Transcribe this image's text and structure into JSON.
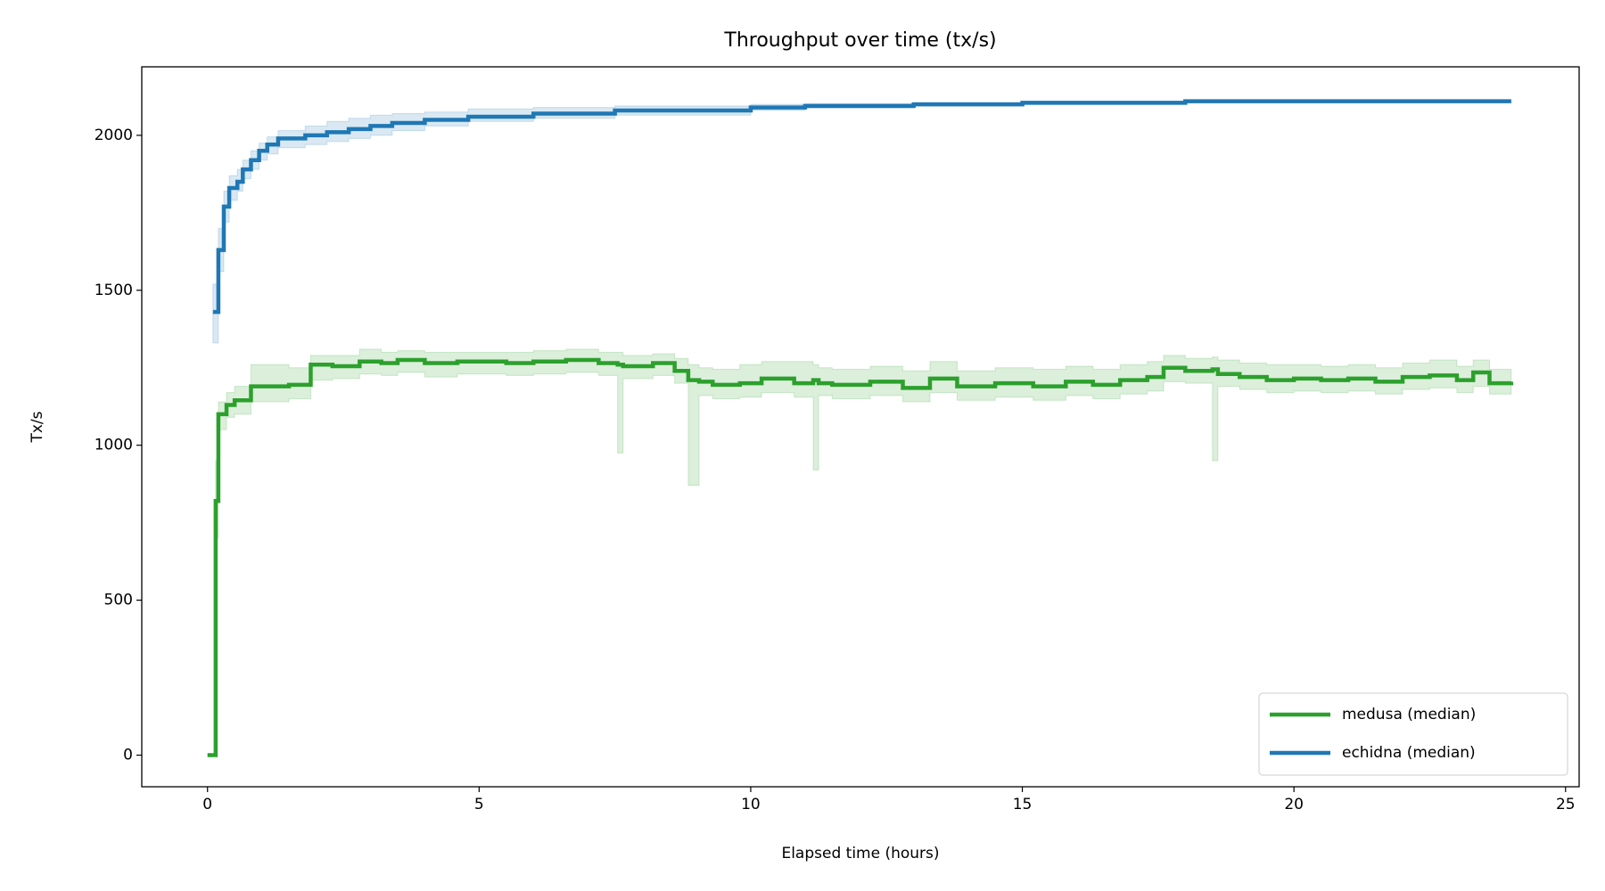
{
  "chart_data": {
    "type": "step",
    "title": "Throughput over time (tx/s)",
    "xlabel": "Elapsed time (hours)",
    "ylabel": "Tx/s",
    "xlim": [
      -1.21,
      25.25
    ],
    "ylim": [
      -102,
      2221
    ],
    "xticks": [
      0,
      5,
      10,
      15,
      20,
      25
    ],
    "yticks": [
      0,
      500,
      1000,
      1500,
      2000
    ],
    "legend": "lower right",
    "grid": false,
    "series": [
      {
        "name": "medusa (median)",
        "color": "#2ca02c",
        "x": [
          0,
          0.1,
          0.15,
          0.2,
          0.35,
          0.5,
          0.8,
          1.5,
          1.9,
          2.3,
          2.8,
          3.2,
          3.5,
          4.0,
          4.6,
          5.5,
          6.0,
          6.6,
          7.2,
          7.55,
          7.65,
          8.2,
          8.6,
          8.85,
          9.05,
          9.3,
          9.8,
          10.2,
          10.8,
          11.15,
          11.25,
          11.5,
          12.2,
          12.8,
          13.3,
          13.8,
          14.5,
          15.2,
          15.8,
          16.3,
          16.8,
          17.3,
          17.6,
          18.0,
          18.5,
          18.6,
          19.0,
          19.5,
          20.0,
          20.5,
          21.0,
          21.5,
          22.0,
          22.5,
          23.0,
          23.3,
          23.6,
          24.0
        ],
        "values": [
          0,
          0,
          820,
          1100,
          1130,
          1145,
          1190,
          1195,
          1260,
          1255,
          1270,
          1265,
          1275,
          1265,
          1270,
          1265,
          1270,
          1275,
          1265,
          1260,
          1255,
          1265,
          1240,
          1210,
          1205,
          1195,
          1200,
          1215,
          1200,
          1210,
          1200,
          1195,
          1205,
          1185,
          1215,
          1190,
          1200,
          1190,
          1205,
          1195,
          1210,
          1220,
          1250,
          1240,
          1245,
          1230,
          1220,
          1210,
          1215,
          1210,
          1215,
          1205,
          1220,
          1225,
          1210,
          1235,
          1200,
          1205
        ],
        "lower": [
          0,
          0,
          700,
          1050,
          1090,
          1100,
          1140,
          1150,
          1210,
          1215,
          1230,
          1225,
          1235,
          1220,
          1230,
          1225,
          1230,
          1235,
          1225,
          975,
          1215,
          1225,
          1200,
          870,
          1160,
          1150,
          1155,
          1170,
          1155,
          920,
          1160,
          1150,
          1160,
          1140,
          1170,
          1145,
          1155,
          1145,
          1160,
          1150,
          1165,
          1175,
          1205,
          1200,
          950,
          1190,
          1180,
          1170,
          1175,
          1170,
          1175,
          1165,
          1180,
          1185,
          1170,
          1190,
          1165,
          1170
        ],
        "upper": [
          0,
          0,
          950,
          1140,
          1170,
          1190,
          1260,
          1250,
          1290,
          1290,
          1310,
          1300,
          1305,
          1300,
          1300,
          1300,
          1305,
          1310,
          1300,
          1300,
          1290,
          1295,
          1280,
          1260,
          1250,
          1245,
          1260,
          1270,
          1270,
          1260,
          1250,
          1245,
          1255,
          1240,
          1270,
          1240,
          1250,
          1245,
          1255,
          1245,
          1260,
          1270,
          1290,
          1280,
          1285,
          1275,
          1265,
          1260,
          1260,
          1255,
          1260,
          1250,
          1265,
          1275,
          1255,
          1275,
          1245,
          1240
        ]
      },
      {
        "name": "echidna (median)",
        "color": "#1f77b4",
        "x": [
          0.1,
          0.2,
          0.3,
          0.4,
          0.55,
          0.65,
          0.8,
          0.95,
          1.1,
          1.3,
          1.8,
          2.2,
          2.6,
          3.0,
          3.4,
          4.0,
          4.8,
          6.0,
          7.5,
          10,
          11,
          13,
          15,
          18,
          24
        ],
        "values": [
          1430,
          1630,
          1770,
          1830,
          1850,
          1890,
          1920,
          1950,
          1970,
          1990,
          2000,
          2010,
          2020,
          2030,
          2040,
          2050,
          2060,
          2070,
          2080,
          2090,
          2095,
          2100,
          2105,
          2110,
          2110
        ],
        "lower": [
          1330,
          1560,
          1720,
          1790,
          1820,
          1860,
          1890,
          1920,
          1940,
          1960,
          1970,
          1980,
          1990,
          2000,
          2015,
          2030,
          2045,
          2055,
          2065,
          2080,
          2088,
          2095,
          2100,
          2106,
          2107
        ],
        "upper": [
          1520,
          1700,
          1820,
          1870,
          1890,
          1920,
          1950,
          1975,
          1995,
          2015,
          2030,
          2045,
          2055,
          2065,
          2070,
          2075,
          2085,
          2090,
          2095,
          2100,
          2102,
          2106,
          2110,
          2113,
          2113
        ]
      }
    ]
  }
}
